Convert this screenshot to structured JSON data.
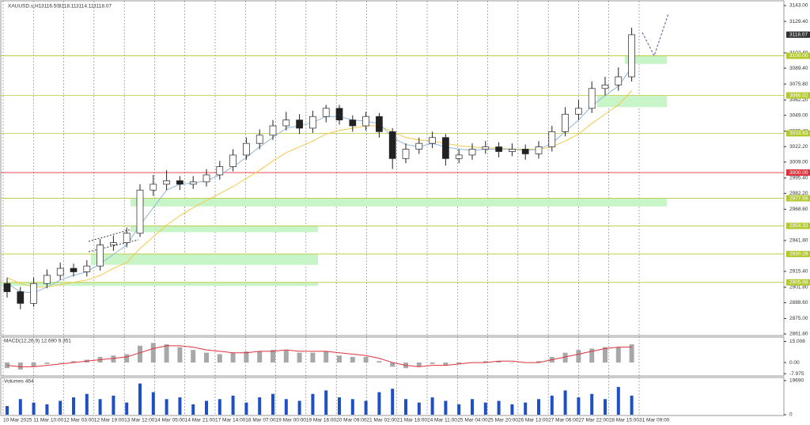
{
  "chart_data": {
    "type": "candlestick",
    "header": {
      "symbol": "XAUUSD.s,H1",
      "ohlc": [
        {
          "value": 3116.5,
          "label": "3116.50"
        },
        {
          "value": 3118.11,
          "label": "3118.11"
        },
        {
          "value": 3114.11,
          "label": "3114.11"
        },
        {
          "value": 3118.07,
          "label": "3118.07"
        }
      ]
    },
    "ylim": [
      2861.8,
      3143
    ],
    "yticks": [
      {
        "value": 3143,
        "label": "3143.00"
      },
      {
        "value": 3129.4,
        "label": "3129.40"
      },
      {
        "value": 3102.4,
        "label": "3102.40"
      },
      {
        "value": 3089.4,
        "label": "3089.40"
      },
      {
        "value": 3075.8,
        "label": "3075.80"
      },
      {
        "value": 3062.2,
        "label": "3062.20"
      },
      {
        "value": 3049,
        "label": "3049.00"
      },
      {
        "value": 3035.4,
        "label": "3035.40"
      },
      {
        "value": 3022.2,
        "label": "3022.20"
      },
      {
        "value": 3009,
        "label": "3009.00"
      },
      {
        "value": 2995.4,
        "label": "2995.40"
      },
      {
        "value": 2982.2,
        "label": "2982.20"
      },
      {
        "value": 2968.6,
        "label": "2968.60"
      },
      {
        "value": 2941.8,
        "label": "2941.80"
      },
      {
        "value": 2915.4,
        "label": "2915.40"
      },
      {
        "value": 2901.8,
        "label": "2901.80"
      },
      {
        "value": 2888.6,
        "label": "2888.60"
      },
      {
        "value": 2875,
        "label": "2875.00"
      },
      {
        "value": 2861.8,
        "label": "2861.80"
      }
    ],
    "categories": [
      "10 Mar 2025",
      "11 Mar 10:00",
      "12 Mar 03:00",
      "12 Mar 19:00",
      "13 Mar 12:00",
      "14 Mar 05:00",
      "14 Mar 21:00",
      "17 Mar 14:00",
      "18 Mar 07:00",
      "19 Mar 00:00",
      "19 Mar 16:00",
      "20 Mar 09:00",
      "21 Mar 02:00",
      "21 Mar 18:00",
      "24 Mar 11:00",
      "25 Mar 04:00",
      "25 Mar 20:00",
      "26 Mar 13:00",
      "27 Mar 06:00",
      "27 Mar 22:00",
      "28 Mar 15:00",
      "31 Mar 09:00"
    ],
    "candles": [
      [
        2905,
        2910,
        2893,
        2898
      ],
      [
        2898,
        2902,
        2883,
        2888
      ],
      [
        2888,
        2910,
        2885,
        2905
      ],
      [
        2905,
        2917,
        2901,
        2912
      ],
      [
        2912,
        2923,
        2908,
        2918
      ],
      [
        2918,
        2922,
        2911,
        2915
      ],
      [
        2915,
        2925,
        2911,
        2920
      ],
      [
        2920,
        2943,
        2916,
        2938
      ],
      [
        2938,
        2946,
        2933,
        2940
      ],
      [
        2940,
        2953,
        2936,
        2948
      ],
      [
        2948,
        2990,
        2945,
        2985
      ],
      [
        2985,
        2998,
        2980,
        2990
      ],
      [
        2990,
        3002,
        2985,
        2993
      ],
      [
        2993,
        2997,
        2985,
        2990
      ],
      [
        2990,
        2997,
        2986,
        2992
      ],
      [
        2992,
        3003,
        2988,
        2998
      ],
      [
        2998,
        3010,
        2994,
        3005
      ],
      [
        3005,
        3020,
        3001,
        3015
      ],
      [
        3015,
        3030,
        3011,
        3025
      ],
      [
        3025,
        3037,
        3020,
        3032
      ],
      [
        3032,
        3045,
        3028,
        3040
      ],
      [
        3040,
        3052,
        3036,
        3045
      ],
      [
        3045,
        3050,
        3033,
        3038
      ],
      [
        3038,
        3053,
        3034,
        3048
      ],
      [
        3048,
        3058,
        3043,
        3055
      ],
      [
        3055,
        3058,
        3041,
        3045
      ],
      [
        3045,
        3049,
        3035,
        3040
      ],
      [
        3040,
        3052,
        3036,
        3048
      ],
      [
        3048,
        3051,
        3030,
        3035
      ],
      [
        3035,
        3038,
        3003,
        3012
      ],
      [
        3012,
        3025,
        3008,
        3020
      ],
      [
        3020,
        3030,
        3016,
        3025
      ],
      [
        3025,
        3035,
        3021,
        3030
      ],
      [
        3030,
        3033,
        3006,
        3012
      ],
      [
        3012,
        3020,
        3008,
        3015
      ],
      [
        3015,
        3025,
        3011,
        3020
      ],
      [
        3020,
        3027,
        3016,
        3022
      ],
      [
        3022,
        3026,
        3013,
        3018
      ],
      [
        3018,
        3025,
        3014,
        3020
      ],
      [
        3020,
        3024,
        3011,
        3016
      ],
      [
        3016,
        3027,
        3012,
        3022
      ],
      [
        3022,
        3040,
        3018,
        3035
      ],
      [
        3035,
        3056,
        3031,
        3050
      ],
      [
        3050,
        3062,
        3045,
        3055
      ],
      [
        3055,
        3078,
        3051,
        3072
      ],
      [
        3072,
        3082,
        3066,
        3075
      ],
      [
        3075,
        3090,
        3070,
        3082
      ],
      [
        3082,
        3124,
        3078,
        3118
      ]
    ],
    "ma_fast": {
      "color": "#8fb8d8",
      "values": [
        2905,
        2898,
        2897,
        2902,
        2908,
        2912,
        2915,
        2922,
        2930,
        2938,
        2955,
        2970,
        2985,
        2990,
        2991,
        2993,
        2998,
        3005,
        3013,
        3022,
        3030,
        3038,
        3040,
        3043,
        3048,
        3048,
        3045,
        3044,
        3042,
        3030,
        3024,
        3022,
        3025,
        3022,
        3020,
        3019,
        3020,
        3020,
        3020,
        3019,
        3020,
        3025,
        3035,
        3045,
        3057,
        3066,
        3074,
        3090
      ]
    },
    "ma_slow": {
      "color": "#f2c94c",
      "values": [
        2910,
        2905,
        2902,
        2902,
        2904,
        2906,
        2908,
        2912,
        2918,
        2923,
        2935,
        2945,
        2955,
        2963,
        2970,
        2976,
        2982,
        2988,
        2995,
        3002,
        3010,
        3017,
        3022,
        3027,
        3033,
        3036,
        3038,
        3040,
        3040,
        3035,
        3030,
        3028,
        3027,
        3025,
        3023,
        3022,
        3021,
        3021,
        3020,
        3020,
        3020,
        3022,
        3027,
        3033,
        3042,
        3050,
        3058,
        3070
      ]
    },
    "forecast": {
      "color": "#7a6fb0",
      "values": [
        3120,
        3100,
        3136
      ]
    },
    "levels": [
      {
        "value": 3100,
        "label": "3100.00",
        "color": "#b5c832"
      },
      {
        "value": 3066.02,
        "label": "3066.02",
        "color": "#b5c832"
      },
      {
        "value": 3033.63,
        "label": "3033.63",
        "color": "#b5c832"
      },
      {
        "value": 3000,
        "label": "3000.00",
        "color": "#e0323c"
      },
      {
        "value": 2977.98,
        "label": "2977.98",
        "color": "#b5c832"
      },
      {
        "value": 2954.33,
        "label": "2954.33",
        "color": "#b5c832"
      },
      {
        "value": 2930.28,
        "label": "2930.28",
        "color": "#b5c832"
      },
      {
        "value": 2905.98,
        "label": "2905.98",
        "color": "#b5c832"
      }
    ],
    "zones": [
      {
        "from": 3100,
        "to": 3093
      },
      {
        "from": 3066,
        "to": 3056
      },
      {
        "from": 2977.98,
        "to": 2971
      },
      {
        "from": 2954.33,
        "to": 2949
      },
      {
        "from": 2930.28,
        "to": 2921
      },
      {
        "from": 2905.98,
        "to": 2903
      }
    ],
    "zone_color": "#c8f5c8",
    "macd": {
      "title": "MACD(12,26,9) 12.690 9.351",
      "ylim": [
        -9,
        17
      ],
      "yticks": [
        15.006,
        {
          "value": 0,
          "label": "0.00"
        },
        -7.975
      ],
      "hist_color": "#a8a8a8",
      "signal_color": "#e0323c",
      "hist": [
        -4,
        -5,
        -3,
        -1,
        0,
        1,
        2,
        4,
        5,
        6,
        12,
        14,
        13,
        11,
        9,
        7,
        6,
        7,
        8,
        8,
        9,
        9,
        7,
        7,
        8,
        5,
        4,
        4,
        1,
        -3,
        -4,
        -3,
        -1,
        -2,
        -1,
        0,
        1,
        1,
        0,
        0,
        1,
        4,
        7,
        9,
        10,
        11,
        11,
        13
      ],
      "signal": [
        -2,
        -3,
        -3,
        -2,
        -1,
        0,
        1,
        2,
        3,
        4,
        7,
        10,
        12,
        12,
        11,
        9,
        8,
        7,
        7,
        8,
        8,
        9,
        8,
        8,
        8,
        7,
        6,
        5,
        3,
        0,
        -2,
        -3,
        -2,
        -2,
        -1,
        0,
        0,
        1,
        1,
        0,
        0,
        2,
        4,
        6,
        8,
        10,
        11,
        11
      ]
    },
    "volume": {
      "title": "Volumes 464",
      "ylim": [
        0,
        21000
      ],
      "yticks": [
        19690,
        0
      ],
      "color": "#1f4fc4",
      "values": [
        5000,
        9000,
        7000,
        6000,
        8000,
        10000,
        12000,
        9000,
        11000,
        7000,
        18000,
        13000,
        9000,
        10000,
        6000,
        8000,
        9000,
        11000,
        7000,
        10000,
        12000,
        9000,
        8000,
        12000,
        14000,
        10000,
        9000,
        8000,
        13000,
        15000,
        9000,
        7000,
        10000,
        8000,
        6000,
        9000,
        7000,
        8000,
        6000,
        7000,
        9000,
        11000,
        14000,
        10000,
        12000,
        9000,
        16000,
        11000
      ]
    }
  }
}
